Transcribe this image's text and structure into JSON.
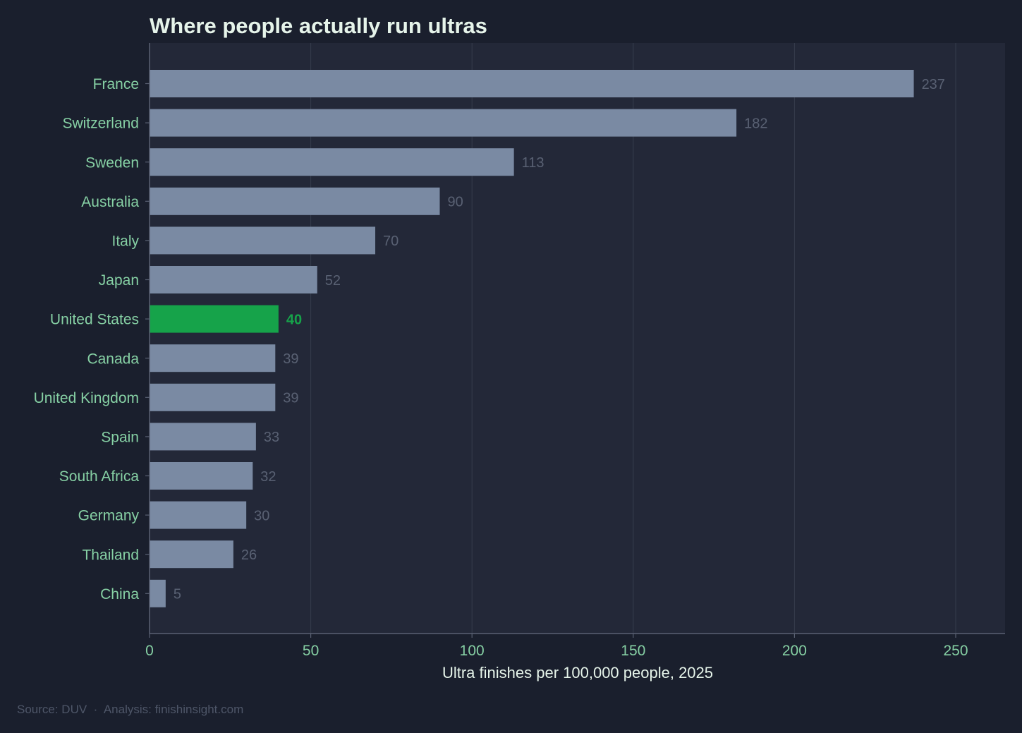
{
  "colors": {
    "page_background": "#1a1f2d",
    "plot_background": "#232838",
    "bar_default": "#7a8aa3",
    "bar_highlight": "#16a34a",
    "title": "#e6f4ea",
    "category_label": "#86d0a4",
    "tick_label": "#86d0a4",
    "value_label": "#596173",
    "value_label_highlight": "#16a34a",
    "axis_label": "#e6f4ea",
    "gridline": "#363c4d",
    "axis_line": "#5a6173",
    "source": "#4e5668"
  },
  "chart_data": {
    "type": "bar",
    "orientation": "horizontal",
    "title": "Where people actually run ultras",
    "xlabel": "Ultra finishes per 100,000 people, 2025",
    "ylabel": "",
    "categories": [
      "France",
      "Switzerland",
      "Sweden",
      "Australia",
      "Italy",
      "Japan",
      "United States",
      "Canada",
      "United Kingdom",
      "Spain",
      "South Africa",
      "Germany",
      "Thailand",
      "China"
    ],
    "values": [
      237,
      182,
      113,
      90,
      70,
      52,
      40,
      39,
      39,
      33,
      32,
      30,
      26,
      5
    ],
    "value_labels": [
      "237",
      "182",
      "113",
      "90",
      "70",
      "52",
      "40",
      "39",
      "39",
      "33",
      "32",
      "30",
      "26",
      "5"
    ],
    "highlight": "United States",
    "xlim": [
      0,
      265.5
    ],
    "xticks": [
      0,
      50,
      100,
      150,
      200,
      250
    ],
    "xtick_labels": [
      "0",
      "50",
      "100",
      "150",
      "200",
      "250"
    ],
    "grid": "vertical",
    "legend": "none"
  },
  "footer": {
    "source": "Source: DUV  ·  Analysis: finishinsight.com"
  }
}
